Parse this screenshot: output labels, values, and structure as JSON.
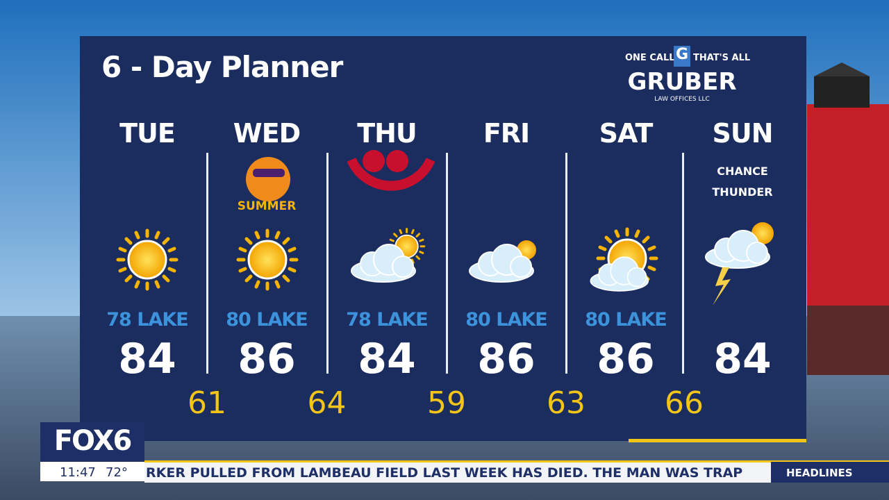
{
  "header": {
    "title": "6 - Day Planner",
    "sponsor": {
      "tagline_left": "ONE CALL",
      "logo_letter": "G",
      "tagline_right": "THAT'S ALL",
      "name": "GRUBER",
      "subtitle": "LAW OFFICES LLC"
    }
  },
  "days": [
    {
      "name": "TUE",
      "lake": "78 LAKE",
      "high": 84
    },
    {
      "name": "WED",
      "lake": "80 LAKE",
      "high": 86,
      "badge": "SUMMER"
    },
    {
      "name": "THU",
      "lake": "78 LAKE",
      "high": 84
    },
    {
      "name": "FRI",
      "lake": "80 LAKE",
      "high": 86
    },
    {
      "name": "SAT",
      "lake": "80 LAKE",
      "high": 86
    },
    {
      "name": "SUN",
      "high": 84,
      "notes": [
        "CHANCE",
        "THUNDER"
      ]
    }
  ],
  "lows": [
    61,
    64,
    59,
    63,
    66
  ],
  "bug": {
    "logo": "FOX6",
    "time": "11:47",
    "temp": "72°"
  },
  "ticker": {
    "text": "RKER PULLED FROM LAMBEAU FIELD LAST WEEK HAS DIED. THE MAN WAS TRAP",
    "section": "HEADLINES"
  }
}
